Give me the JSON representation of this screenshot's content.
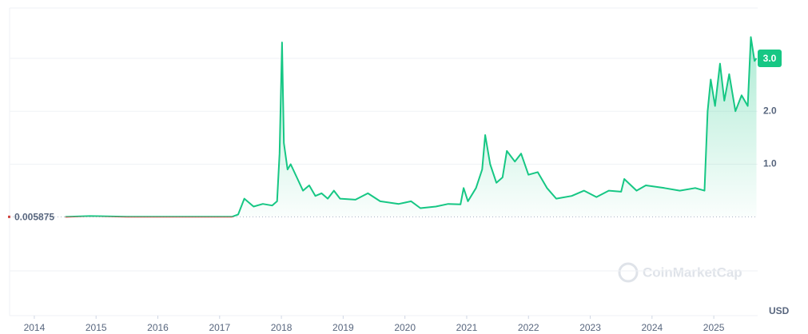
{
  "chart_data": {
    "type": "line",
    "currency": "USD",
    "watermark": "CoinMarketCap",
    "baseline": 0.005875,
    "current_price": {
      "value": 3,
      "label": "3.0"
    },
    "xlim": [
      2013.6,
      2025.71
    ],
    "xticks": [
      2014,
      2015,
      2016,
      2017,
      2018,
      2019,
      2020,
      2021,
      2022,
      2023,
      2024,
      2025
    ],
    "ylim": [
      -1.86,
      3.95
    ],
    "yticks": [
      {
        "value": 1,
        "label": "1.0"
      },
      {
        "value": 2,
        "label": "2.0"
      },
      {
        "value": 3,
        "label": "3.0"
      }
    ],
    "grid": true,
    "series": [
      {
        "color": "#16c784",
        "below_color": "#d0443f",
        "x": [
          2014.5,
          2014.9,
          2015.5,
          2016.5,
          2017.2,
          2017.3,
          2017.4,
          2017.55,
          2017.7,
          2017.85,
          2017.93,
          2017.97,
          2018.01,
          2018.04,
          2018.1,
          2018.15,
          2018.25,
          2018.35,
          2018.45,
          2018.55,
          2018.65,
          2018.75,
          2018.85,
          2018.95,
          2019.2,
          2019.4,
          2019.6,
          2019.9,
          2020.1,
          2020.25,
          2020.5,
          2020.7,
          2020.9,
          2020.95,
          2021.02,
          2021.15,
          2021.25,
          2021.3,
          2021.38,
          2021.48,
          2021.58,
          2021.65,
          2021.78,
          2021.88,
          2022.0,
          2022.15,
          2022.3,
          2022.45,
          2022.7,
          2022.9,
          2023.1,
          2023.3,
          2023.5,
          2023.55,
          2023.75,
          2023.9,
          2024.2,
          2024.45,
          2024.7,
          2024.85,
          2024.9,
          2024.95,
          2025.02,
          2025.1,
          2025.17,
          2025.25,
          2025.35,
          2025.45,
          2025.55,
          2025.6,
          2025.66,
          2025.69
        ],
        "values": [
          0.005,
          0.02,
          0.008,
          0.007,
          0.006,
          0.05,
          0.35,
          0.2,
          0.25,
          0.22,
          0.3,
          1.2,
          3.3,
          1.4,
          0.9,
          1.0,
          0.75,
          0.5,
          0.6,
          0.4,
          0.45,
          0.35,
          0.5,
          0.35,
          0.33,
          0.45,
          0.3,
          0.25,
          0.3,
          0.17,
          0.2,
          0.25,
          0.24,
          0.55,
          0.3,
          0.55,
          0.9,
          1.55,
          1.0,
          0.65,
          0.75,
          1.25,
          1.05,
          1.2,
          0.8,
          0.85,
          0.55,
          0.35,
          0.4,
          0.5,
          0.38,
          0.5,
          0.48,
          0.72,
          0.5,
          0.6,
          0.55,
          0.5,
          0.55,
          0.5,
          2.0,
          2.6,
          2.1,
          2.9,
          2.2,
          2.7,
          2.0,
          2.3,
          2.1,
          3.4,
          2.95,
          3.0
        ]
      }
    ]
  }
}
